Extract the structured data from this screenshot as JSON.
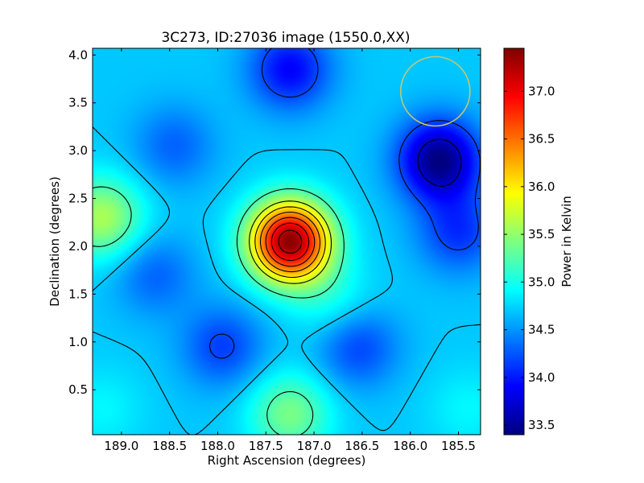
{
  "chart_data": {
    "type": "heatmap",
    "title": "3C273, ID:27036 image (1550.0,XX)",
    "xlabel": "Right Ascension (degrees)",
    "ylabel": "Declination (degrees)",
    "xlim": [
      189.3,
      185.27
    ],
    "ylim": [
      0.03,
      4.07
    ],
    "x_ticks": [
      189.0,
      188.5,
      188.0,
      187.5,
      187.0,
      186.5,
      186.0,
      185.5
    ],
    "x_tick_labels": [
      "189.0",
      "188.5",
      "188.0",
      "187.5",
      "187.0",
      "186.5",
      "186.0",
      "185.5"
    ],
    "y_ticks": [
      0.5,
      1.0,
      1.5,
      2.0,
      2.5,
      3.0,
      3.5,
      4.0
    ],
    "y_tick_labels": [
      "0.5",
      "1.0",
      "1.5",
      "2.0",
      "2.5",
      "3.0",
      "3.5",
      "4.0"
    ],
    "colorbar": {
      "label": "Power in Kelvin",
      "colormap": "jet",
      "range": [
        33.4,
        37.45
      ],
      "ticks": [
        33.5,
        34.0,
        34.5,
        35.0,
        35.5,
        36.0,
        36.5,
        37.0
      ],
      "tick_labels": [
        "33.5",
        "34.0",
        "34.5",
        "35.0",
        "35.5",
        "36.0",
        "36.5",
        "37.0"
      ]
    },
    "background_level": 34.7,
    "features": [
      {
        "ra": 187.25,
        "dec": 2.05,
        "peak": 37.4
      },
      {
        "ra": 189.2,
        "dec": 2.3,
        "peak": 35.6
      },
      {
        "ra": 185.7,
        "dec": 2.9,
        "peak": 33.4
      },
      {
        "ra": 187.25,
        "dec": 3.85,
        "peak": 33.9
      },
      {
        "ra": 185.5,
        "dec": 2.15,
        "peak": 34.1
      },
      {
        "ra": 187.25,
        "dec": 0.25,
        "peak": 35.4
      },
      {
        "ra": 187.95,
        "dec": 0.95,
        "peak": 34.15
      },
      {
        "ra": 186.55,
        "dec": 0.95,
        "peak": 34.15
      },
      {
        "ra": 188.65,
        "dec": 1.7,
        "peak": 34.3
      },
      {
        "ra": 188.45,
        "dec": 3.05,
        "peak": 34.3
      },
      {
        "ra": 189.2,
        "dec": 0.3,
        "peak": 34.9
      },
      {
        "ra": 185.4,
        "dec": 0.3,
        "peak": 34.9
      },
      {
        "ra": 186.8,
        "dec": 1.4,
        "peak": 35.0
      }
    ],
    "contour_levels": [
      33.7,
      34.2,
      34.7,
      35.2,
      35.7,
      36.0,
      36.3,
      36.6,
      36.9,
      37.2
    ],
    "beam_circle": {
      "ra": 185.74,
      "dec": 3.62,
      "radius_deg": 0.36,
      "color": "#c8c86e"
    }
  }
}
